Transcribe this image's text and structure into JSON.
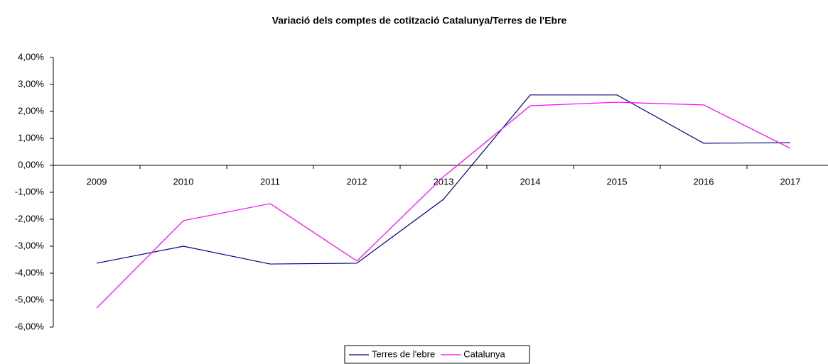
{
  "chart_data": {
    "type": "line",
    "title": "Variació dels comptes de cotització Catalunya/Terres de l'Ebre",
    "categories": [
      "2009",
      "2010",
      "2011",
      "2012",
      "2013",
      "2014",
      "2015",
      "2016",
      "2017"
    ],
    "series": [
      {
        "name": "Terres de l'ebre",
        "color": "#000080",
        "values": [
          -3.63,
          -3.0,
          -3.66,
          -3.63,
          -1.26,
          2.61,
          2.61,
          0.82,
          0.84
        ]
      },
      {
        "name": "Catalunya",
        "color": "#ff00ff",
        "values": [
          -5.29,
          -2.05,
          -1.42,
          -3.55,
          -0.42,
          2.21,
          2.34,
          2.24,
          0.63
        ]
      }
    ],
    "ylim": [
      -6,
      4
    ],
    "yticks": [
      {
        "value": 4,
        "label": "4,00%"
      },
      {
        "value": 3,
        "label": "3,00%"
      },
      {
        "value": 2,
        "label": "2,00%"
      },
      {
        "value": 1,
        "label": "1,00%"
      },
      {
        "value": 0,
        "label": "0,00%"
      },
      {
        "value": -1,
        "label": "-1,00%"
      },
      {
        "value": -2,
        "label": "-2,00%"
      },
      {
        "value": -3,
        "label": "-3,00%"
      },
      {
        "value": -4,
        "label": "-4,00%"
      },
      {
        "value": -5,
        "label": "-5,00%"
      },
      {
        "value": -6,
        "label": "-6,00%"
      }
    ],
    "legend": "bottom"
  }
}
